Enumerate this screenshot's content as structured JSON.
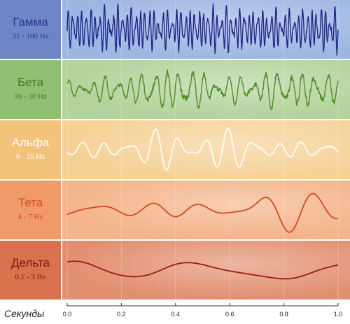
{
  "chart_data": {
    "type": "line",
    "xlabel": "Секунды",
    "xlim": [
      0.0,
      1.0
    ],
    "xticks": [
      "0.0",
      "0.2",
      "0.4",
      "0.6",
      "0.8",
      "1.0"
    ],
    "grid": true,
    "series": [
      {
        "name": "Гамма",
        "range": "31 - 100 Hz",
        "color": "#1f2a8a",
        "label_color": "#2c3a8f",
        "bg_left": "#6f86c6",
        "bg_plot": "#9db6e2",
        "freq_hz": 60,
        "amplitude": [
          0.9,
          1.0,
          0.9,
          1.0,
          0.9,
          1.0
        ]
      },
      {
        "name": "Бета",
        "range": "16 - 30 Hz",
        "color": "#4f8f2a",
        "label_color": "#3f7f1f",
        "bg_left": "#8fbf73",
        "bg_plot": "#b2d39b",
        "freq_hz": 22,
        "amplitude": [
          0.4,
          0.6,
          1.0,
          0.6,
          0.9,
          0.7
        ]
      },
      {
        "name": "Альфа",
        "range": "8 - 15 Hz",
        "color": "#ffffff",
        "label_color": "#ffffff",
        "bg_left": "#f3c27b",
        "bg_plot": "#f6d196",
        "freq_hz": 11,
        "amplitude": [
          0.3,
          0.5,
          1.0,
          0.9,
          0.4,
          0.3
        ]
      },
      {
        "name": "Тета",
        "range": "4 - 7 Hz",
        "color": "#d9481d",
        "label_color": "#d94a1f",
        "bg_left": "#f09a6a",
        "bg_plot": "#f4b48a",
        "freq_hz": 5,
        "amplitude": [
          0.3,
          0.3,
          0.4,
          0.3,
          1.0,
          0.6
        ]
      },
      {
        "name": "Дельта",
        "range": "0.1 - 3 Hz",
        "color": "#9a1d14",
        "label_color": "#7f1a12",
        "bg_left": "#d9714e",
        "bg_plot": "#e28f70",
        "freq_hz": 2,
        "amplitude": [
          0.5,
          0.4,
          0.6,
          0.5,
          1.0,
          0.4
        ]
      }
    ]
  }
}
